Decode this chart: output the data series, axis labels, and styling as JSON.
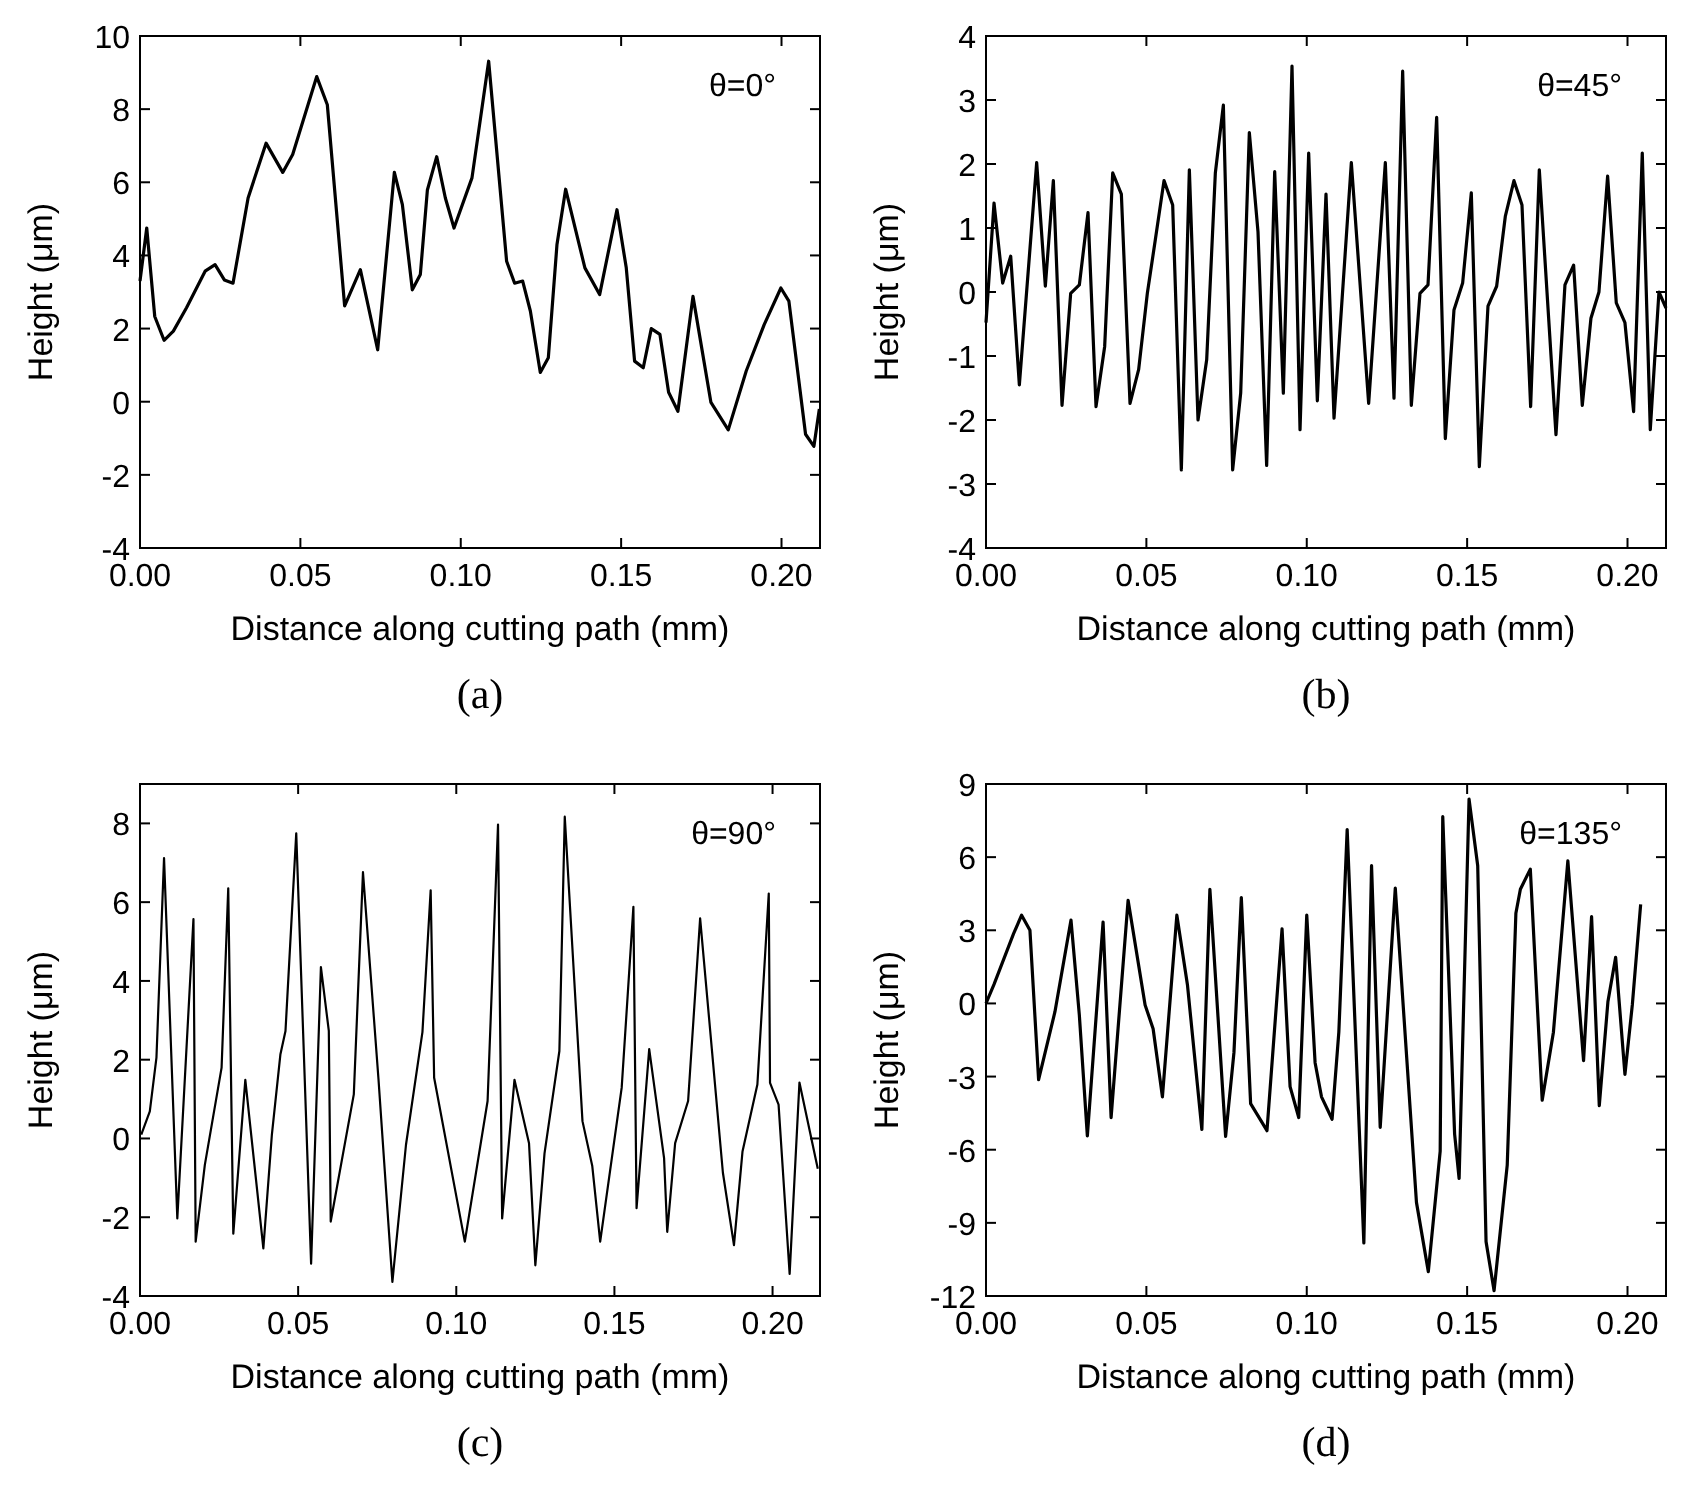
{
  "chart_data": [
    {
      "type": "line",
      "xlabel": "Distance along cutting path (mm)",
      "ylabel": "Height (μm)",
      "annotations": [
        "θ=0°",
        "(a)"
      ],
      "xlim": [
        0,
        0.212
      ],
      "ylim": [
        -4,
        10
      ],
      "xticks": [
        {
          "value": 0,
          "label": "0.00"
        },
        {
          "value": 0.05,
          "label": "0.05"
        },
        {
          "value": 0.1,
          "label": "0.10"
        },
        {
          "value": 0.15,
          "label": "0.15"
        },
        {
          "value": 0.2,
          "label": "0.20"
        }
      ],
      "yticks": [
        -4,
        -2,
        0,
        2,
        4,
        6,
        8,
        10
      ],
      "series": [
        {
          "color": "#000000",
          "x": [
            0,
            0.0021,
            0.0046,
            0.0075,
            0.0104,
            0.0145,
            0.0203,
            0.0234,
            0.0263,
            0.029,
            0.0337,
            0.0393,
            0.0445,
            0.0476,
            0.0551,
            0.0584,
            0.0638,
            0.0687,
            0.0741,
            0.0793,
            0.0818,
            0.0849,
            0.0874,
            0.0896,
            0.0925,
            0.0952,
            0.0979,
            0.1035,
            0.1087,
            0.1143,
            0.1168,
            0.1193,
            0.1217,
            0.1248,
            0.1273,
            0.13,
            0.1327,
            0.1387,
            0.1433,
            0.1487,
            0.1516,
            0.1542,
            0.1569,
            0.1594,
            0.1621,
            0.1648,
            0.1677,
            0.1724,
            0.178,
            0.1834,
            0.189,
            0.1946,
            0.1998,
            0.2023,
            0.2075,
            0.2101,
            0.2118
          ],
          "values": [
            3.3,
            4.75,
            2.33,
            1.68,
            1.93,
            2.57,
            3.57,
            3.75,
            3.33,
            3.24,
            5.57,
            7.07,
            6.27,
            6.76,
            8.89,
            8.12,
            2.62,
            3.61,
            1.42,
            6.27,
            5.39,
            3.06,
            3.48,
            5.79,
            6.7,
            5.57,
            4.75,
            6.12,
            9.31,
            3.84,
            3.24,
            3.3,
            2.48,
            0.8,
            1.2,
            4.3,
            5.81,
            3.66,
            2.93,
            5.25,
            3.66,
            1.11,
            0.93,
            2.0,
            1.84,
            0.26,
            -0.26,
            2.88,
            -0.02,
            -0.77,
            0.84,
            2.11,
            3.11,
            2.75,
            -0.89,
            -1.22,
            -0.2
          ]
        }
      ]
    },
    {
      "type": "line",
      "xlabel": "Distance along cutting path (mm)",
      "ylabel": "Height (μm)",
      "annotations": [
        "θ=45°",
        "(b)"
      ],
      "xlim": [
        0,
        0.212
      ],
      "ylim": [
        -4,
        4
      ],
      "xticks": [
        {
          "value": 0,
          "label": "0.00"
        },
        {
          "value": 0.05,
          "label": "0.05"
        },
        {
          "value": 0.1,
          "label": "0.10"
        },
        {
          "value": 0.15,
          "label": "0.15"
        },
        {
          "value": 0.2,
          "label": "0.20"
        }
      ],
      "yticks": [
        -4,
        -3,
        -2,
        -1,
        0,
        1,
        2,
        3,
        4
      ],
      "series": [
        {
          "color": "#000000",
          "x": [
            0,
            0.0025,
            0.0052,
            0.0077,
            0.0104,
            0.0158,
            0.0185,
            0.021,
            0.0237,
            0.0264,
            0.0291,
            0.0318,
            0.0343,
            0.037,
            0.0395,
            0.0422,
            0.0449,
            0.0476,
            0.0503,
            0.0528,
            0.0555,
            0.0582,
            0.0609,
            0.0634,
            0.0661,
            0.0688,
            0.0715,
            0.074,
            0.0769,
            0.0794,
            0.0821,
            0.0848,
            0.0875,
            0.09,
            0.0927,
            0.0954,
            0.0979,
            0.1006,
            0.1033,
            0.106,
            0.1085,
            0.1139,
            0.1193,
            0.1245,
            0.1272,
            0.1299,
            0.1326,
            0.1353,
            0.1378,
            0.1405,
            0.1432,
            0.1459,
            0.1486,
            0.1513,
            0.1538,
            0.1565,
            0.1592,
            0.1619,
            0.1646,
            0.1671,
            0.1698,
            0.1725,
            0.1777,
            0.1805,
            0.1832,
            0.1859,
            0.1886,
            0.1911,
            0.1938,
            0.1965,
            0.1992,
            0.2019,
            0.2046,
            0.2071,
            0.2098,
            0.212
          ],
          "values": [
            -0.48,
            1.39,
            0.14,
            0.56,
            -1.45,
            2.02,
            0.09,
            1.74,
            -1.77,
            -0.02,
            0.11,
            1.24,
            -1.79,
            -0.85,
            1.86,
            1.53,
            -1.74,
            -1.21,
            -0.02,
            0.82,
            1.74,
            1.36,
            -2.78,
            1.91,
            -2.0,
            -1.06,
            1.86,
            2.92,
            -2.78,
            -1.58,
            2.49,
            0.94,
            -2.71,
            1.88,
            -1.58,
            3.53,
            -2.15,
            2.17,
            -1.7,
            1.53,
            -1.97,
            2.02,
            -1.74,
            2.02,
            -1.66,
            3.45,
            -1.77,
            -0.02,
            0.11,
            2.73,
            -2.29,
            -0.28,
            0.14,
            1.55,
            -2.73,
            -0.22,
            0.09,
            1.18,
            1.74,
            1.36,
            -1.79,
            1.91,
            -2.23,
            0.11,
            0.42,
            -1.77,
            -0.41,
            0.0,
            1.81,
            -0.17,
            -0.48,
            -1.87,
            2.17,
            -2.15,
            0.0,
            -0.25
          ]
        }
      ]
    },
    {
      "type": "line",
      "xlabel": "Distance along cutting path (mm)",
      "ylabel": "Height (μm)",
      "annotations": [
        "θ=90°",
        "(c)"
      ],
      "xlim": [
        0,
        0.215
      ],
      "ylim": [
        -4,
        9
      ],
      "xticks": [
        {
          "value": 0,
          "label": "0.00"
        },
        {
          "value": 0.05,
          "label": "0.05"
        },
        {
          "value": 0.1,
          "label": "0.10"
        },
        {
          "value": 0.15,
          "label": "0.15"
        },
        {
          "value": 0.2,
          "label": "0.20"
        }
      ],
      "yticks": [
        -4,
        -2,
        0,
        2,
        4,
        6,
        8
      ],
      "series": [
        {
          "color": "#000000",
          "x": [
            0.0004,
            0.0031,
            0.0052,
            0.0076,
            0.0118,
            0.0169,
            0.0176,
            0.0205,
            0.0258,
            0.0279,
            0.0295,
            0.0333,
            0.039,
            0.0417,
            0.0444,
            0.046,
            0.0494,
            0.0541,
            0.0572,
            0.0597,
            0.0603,
            0.0676,
            0.0705,
            0.0754,
            0.0798,
            0.0841,
            0.0893,
            0.0919,
            0.093,
            0.1027,
            0.1099,
            0.1132,
            0.1145,
            0.1184,
            0.123,
            0.125,
            0.1279,
            0.1326,
            0.1343,
            0.1399,
            0.143,
            0.1455,
            0.1523,
            0.156,
            0.157,
            0.161,
            0.1657,
            0.1667,
            0.1692,
            0.1733,
            0.1771,
            0.1843,
            0.1878,
            0.1905,
            0.1952,
            0.1988,
            0.1992,
            0.2019,
            0.2054,
            0.2085,
            0.2143
          ],
          "values": [
            0.1,
            0.69,
            2.05,
            7.12,
            -2.03,
            5.57,
            -2.62,
            -0.67,
            1.8,
            6.35,
            -2.42,
            1.49,
            -2.79,
            0.1,
            2.14,
            2.73,
            7.75,
            -3.18,
            4.35,
            2.73,
            -2.11,
            1.12,
            6.76,
            1.51,
            -3.64,
            -0.16,
            2.7,
            6.3,
            1.54,
            -2.62,
            0.95,
            7.97,
            -2.03,
            1.49,
            -0.12,
            -3.22,
            -0.38,
            2.22,
            8.17,
            0.44,
            -0.7,
            -2.62,
            1.29,
            5.88,
            -1.77,
            2.27,
            -0.5,
            -2.37,
            -0.12,
            0.95,
            5.59,
            -0.87,
            -2.71,
            -0.33,
            1.37,
            6.22,
            1.41,
            0.86,
            -3.44,
            1.42,
            -0.77
          ]
        }
      ]
    },
    {
      "type": "line",
      "xlabel": "Distance along cutting path (mm)",
      "ylabel": "Height (μm)",
      "annotations": [
        "θ=135°",
        "(d)"
      ],
      "xlim": [
        0,
        0.212
      ],
      "ylim": [
        -12,
        9
      ],
      "xticks": [
        {
          "value": 0,
          "label": "0.00"
        },
        {
          "value": 0.05,
          "label": "0.05"
        },
        {
          "value": 0.1,
          "label": "0.10"
        },
        {
          "value": 0.15,
          "label": "0.15"
        },
        {
          "value": 0.2,
          "label": "0.20"
        }
      ],
      "yticks": [
        -12,
        -9,
        -6,
        -3,
        0,
        3,
        6,
        9
      ],
      "series": [
        {
          "color": "#000000",
          "x": [
            0,
            0.0025,
            0.0086,
            0.0111,
            0.0137,
            0.0164,
            0.0215,
            0.0265,
            0.0291,
            0.0316,
            0.0365,
            0.039,
            0.0443,
            0.0496,
            0.0521,
            0.055,
            0.0595,
            0.0628,
            0.0673,
            0.0698,
            0.0747,
            0.0773,
            0.0796,
            0.0825,
            0.0876,
            0.0923,
            0.0948,
            0.0975,
            0.1,
            0.1026,
            0.1046,
            0.1079,
            0.11,
            0.1126,
            0.1178,
            0.1202,
            0.1229,
            0.1276,
            0.1342,
            0.1379,
            0.1416,
            0.1424,
            0.1461,
            0.1475,
            0.1506,
            0.1533,
            0.1559,
            0.1584,
            0.1625,
            0.1652,
            0.1666,
            0.1697,
            0.1734,
            0.1769,
            0.1814,
            0.1863,
            0.1888,
            0.1912,
            0.1939,
            0.1963,
            0.1992,
            0.2015,
            0.2041
          ],
          "values": [
            0,
            0.78,
            2.86,
            3.62,
            3.0,
            -3.13,
            -0.34,
            3.42,
            -0.48,
            -5.43,
            3.34,
            -4.68,
            4.23,
            -0.06,
            -1.04,
            -3.83,
            3.62,
            0.77,
            -5.17,
            4.68,
            -5.45,
            -2.02,
            4.34,
            -4.11,
            -5.22,
            3.06,
            -3.41,
            -4.68,
            3.62,
            -2.43,
            -3.83,
            -4.75,
            -1.18,
            7.13,
            -9.82,
            5.65,
            -5.08,
            4.73,
            -8.16,
            -11.0,
            -6.06,
            7.66,
            -5.36,
            -7.18,
            8.38,
            5.65,
            -9.77,
            -11.78,
            -6.63,
            3.7,
            4.68,
            5.51,
            -3.97,
            -1.18,
            5.85,
            -2.35,
            3.56,
            -4.19,
            0.08,
            1.89,
            -2.91,
            -0.06,
            4.06
          ]
        }
      ]
    }
  ]
}
